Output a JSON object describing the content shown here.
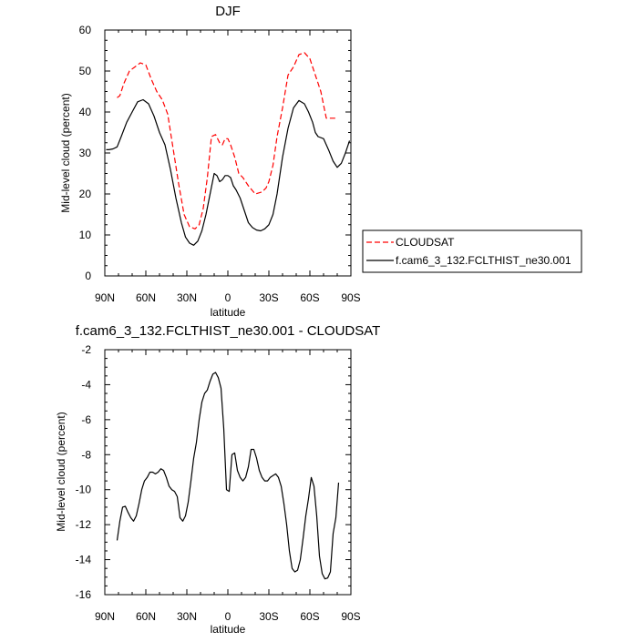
{
  "chart_data": [
    {
      "type": "line",
      "title": "DJF",
      "xlabel": "latitude",
      "ylabel": "Mid-level cloud (percent)",
      "xlim": [
        90,
        -90
      ],
      "ylim": [
        0,
        60
      ],
      "x_ticks": [
        90,
        60,
        30,
        0,
        -30,
        -60,
        -90
      ],
      "x_tick_labels": [
        "90N",
        "60N",
        "30N",
        "0",
        "30S",
        "60S",
        "90S"
      ],
      "y_ticks": [
        0,
        10,
        20,
        30,
        40,
        50,
        60
      ],
      "y_tick_labels": [
        "0",
        "10",
        "20",
        "30",
        "40",
        "50",
        "60"
      ],
      "grid": false,
      "legend": "outside-right",
      "series": [
        {
          "name": "CLOUDSAT",
          "color": "#ff0000",
          "dash": "dashed",
          "x": [
            81,
            79,
            76,
            72,
            68,
            64,
            60,
            56,
            52,
            48,
            44,
            40,
            36,
            32,
            28,
            24,
            21,
            18,
            15,
            12,
            9,
            6,
            4,
            2,
            0,
            -2,
            -5,
            -8,
            -11,
            -15,
            -20,
            -25,
            -28,
            -30,
            -33,
            -36,
            -40,
            -44,
            -48,
            -52,
            -56,
            -60,
            -62,
            -64,
            -68,
            -72,
            -76,
            -80
          ],
          "y": [
            43.5,
            44,
            47,
            50,
            51,
            52,
            51.5,
            48,
            45,
            43,
            39.5,
            31,
            22.5,
            15,
            12,
            11.5,
            12.5,
            16.5,
            24,
            34,
            34.5,
            32.5,
            32,
            33.5,
            33.5,
            32,
            29,
            25,
            24,
            22,
            20,
            20.5,
            21.5,
            23,
            27,
            34,
            41,
            49,
            51,
            54,
            54.5,
            53,
            51,
            49,
            45,
            38.5,
            38.5,
            38.5
          ]
        },
        {
          "name": "f.cam6_3_132.FCLTHIST_ne30.001",
          "color": "#000000",
          "dash": "solid",
          "x": [
            89,
            87,
            84,
            81,
            78,
            74,
            70,
            66,
            62,
            58,
            54,
            50,
            46,
            42,
            38,
            34,
            31,
            28,
            25,
            22,
            19,
            16,
            13,
            10,
            8,
            6,
            4,
            2,
            0,
            -2,
            -4,
            -6,
            -9,
            -12,
            -15,
            -18,
            -21,
            -24,
            -27,
            -30,
            -33,
            -36,
            -40,
            -44,
            -48,
            -52,
            -56,
            -59,
            -62,
            -64,
            -66,
            -70,
            -74,
            -77,
            -80,
            -83,
            -86,
            -89
          ],
          "y": [
            30.8,
            30.8,
            31,
            31.5,
            34,
            37.5,
            40,
            42.5,
            43,
            42,
            39,
            35,
            32,
            26,
            19,
            13,
            9.5,
            8,
            7.5,
            8.5,
            11,
            15,
            20,
            25,
            24.5,
            23,
            23.5,
            24.5,
            24.5,
            24,
            22,
            21,
            19,
            16,
            13,
            11.8,
            11.2,
            11,
            11.5,
            12.5,
            15,
            20,
            29,
            36,
            41,
            42.8,
            42,
            40,
            37.5,
            35,
            34,
            33.5,
            30.5,
            28,
            26.5,
            27.5,
            30,
            33
          ]
        }
      ]
    },
    {
      "type": "line",
      "title": "f.cam6_3_132.FCLTHIST_ne30.001 - CLOUDSAT",
      "xlabel": "latitude",
      "ylabel": "Mid-level cloud (percent)",
      "xlim": [
        90,
        -90
      ],
      "ylim": [
        -16,
        -2
      ],
      "x_ticks": [
        90,
        60,
        30,
        0,
        -30,
        -60,
        -90
      ],
      "x_tick_labels": [
        "90N",
        "60N",
        "30N",
        "0",
        "30S",
        "60S",
        "90S"
      ],
      "y_ticks": [
        -16,
        -14,
        -12,
        -10,
        -8,
        -6,
        -4,
        -2
      ],
      "y_tick_labels": [
        "-16",
        "-14",
        "-12",
        "-10",
        "-8",
        "-6",
        "-4",
        "-2"
      ],
      "grid": false,
      "series": [
        {
          "name": "",
          "color": "#000000",
          "dash": "solid",
          "x": [
            81,
            79,
            77,
            75,
            73,
            71,
            69,
            67,
            65,
            63,
            61,
            59,
            57,
            55,
            53,
            51,
            49,
            47,
            45,
            43,
            41,
            39,
            37,
            35,
            33,
            31,
            29,
            27,
            25,
            23,
            21,
            19,
            17,
            15,
            13,
            11,
            9,
            7,
            5,
            3,
            1,
            -1,
            -3,
            -5,
            -7,
            -9,
            -11,
            -13,
            -15,
            -17,
            -19,
            -21,
            -23,
            -25,
            -27,
            -29,
            -31,
            -33,
            -35,
            -37,
            -39,
            -41,
            -43,
            -45,
            -47,
            -49,
            -51,
            -53,
            -55,
            -57,
            -59,
            -61,
            -63,
            -65,
            -67,
            -69,
            -71,
            -73,
            -75,
            -77,
            -79,
            -81
          ],
          "y": [
            -12.9,
            -11.8,
            -11.0,
            -10.95,
            -11.3,
            -11.6,
            -11.8,
            -11.5,
            -10.8,
            -10.0,
            -9.5,
            -9.3,
            -9.0,
            -9.0,
            -9.1,
            -9.0,
            -8.8,
            -8.9,
            -9.3,
            -9.8,
            -10.0,
            -10.1,
            -10.4,
            -11.6,
            -11.8,
            -11.5,
            -10.7,
            -9.5,
            -8.2,
            -7.3,
            -6.0,
            -5.0,
            -4.5,
            -4.3,
            -3.8,
            -3.4,
            -3.3,
            -3.6,
            -4.2,
            -6.5,
            -10.0,
            -10.1,
            -8.0,
            -7.9,
            -8.9,
            -9.3,
            -9.5,
            -9.3,
            -8.7,
            -7.7,
            -7.7,
            -8.2,
            -8.9,
            -9.3,
            -9.5,
            -9.5,
            -9.3,
            -9.2,
            -9.1,
            -9.3,
            -9.8,
            -10.8,
            -12.0,
            -13.5,
            -14.5,
            -14.7,
            -14.6,
            -14.0,
            -12.8,
            -11.5,
            -10.5,
            -9.3,
            -9.8,
            -11.5,
            -13.8,
            -14.8,
            -15.1,
            -15.05,
            -14.7,
            -12.5,
            -11.6,
            -9.6
          ]
        }
      ]
    }
  ]
}
